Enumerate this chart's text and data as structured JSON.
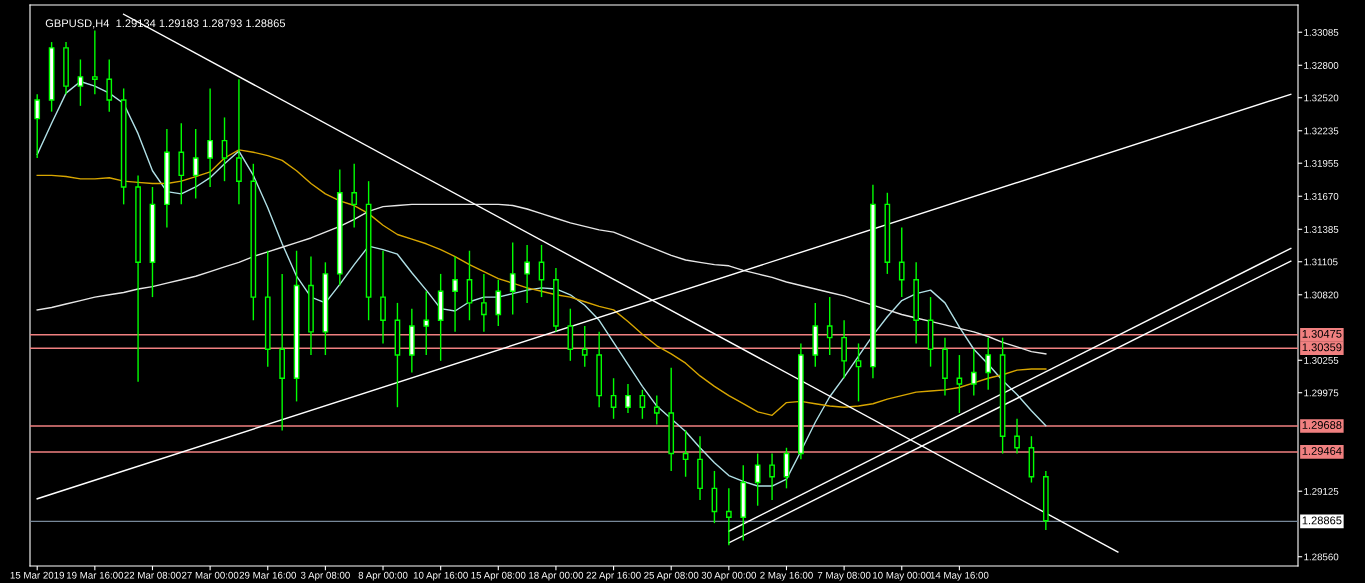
{
  "chart_data": {
    "type": "candlestick",
    "title": "GBPUSD,H4  1.29134 1.29183 1.28793 1.28865",
    "color": "#00ff00",
    "categories": [
      "15 Mar 2019",
      null,
      null,
      null,
      "19 Mar 16:00",
      null,
      null,
      null,
      "22 Mar 08:00",
      null,
      null,
      null,
      "27 Mar 00:00",
      null,
      null,
      null,
      "29 Mar 16:00",
      null,
      null,
      null,
      "3 Apr 08:00",
      null,
      null,
      null,
      "8 Apr 00:00",
      null,
      null,
      null,
      "10 Apr 16:00",
      null,
      null,
      null,
      "15 Apr 08:00",
      null,
      null,
      null,
      "18 Apr 00:00",
      null,
      null,
      null,
      "22 Apr 16:00",
      null,
      null,
      null,
      "25 Apr 08:00",
      null,
      null,
      null,
      "30 Apr 00:00",
      null,
      null,
      null,
      "2 May 16:00",
      null,
      null,
      null,
      "7 May 08:00",
      null,
      null,
      null,
      "10 May 00:00",
      null,
      null,
      null,
      "14 May 16:00",
      null,
      null,
      null,
      null,
      null,
      null,
      null,
      null,
      null,
      null,
      null,
      null,
      null,
      null,
      null,
      null,
      null,
      null,
      null,
      null,
      null,
      null,
      null
    ],
    "ohlc": [
      [
        1.3234,
        1.3255,
        1.32,
        1.325
      ],
      [
        1.325,
        1.33,
        1.324,
        1.3295
      ],
      [
        1.3295,
        1.33,
        1.3255,
        1.3262
      ],
      [
        1.3262,
        1.3285,
        1.3245,
        1.327
      ],
      [
        1.327,
        1.331,
        1.3255,
        1.3268
      ],
      [
        1.3268,
        1.3285,
        1.324,
        1.325
      ],
      [
        1.325,
        1.326,
        1.316,
        1.3175
      ],
      [
        1.3175,
        1.3185,
        1.3007,
        1.311
      ],
      [
        1.311,
        1.3175,
        1.308,
        1.316
      ],
      [
        1.316,
        1.3225,
        1.314,
        1.3205
      ],
      [
        1.3205,
        1.323,
        1.316,
        1.3185
      ],
      [
        1.3185,
        1.3225,
        1.3165,
        1.32
      ],
      [
        1.32,
        1.326,
        1.3175,
        1.3215
      ],
      [
        1.3215,
        1.3235,
        1.318,
        1.32
      ],
      [
        1.32,
        1.3268,
        1.316,
        1.318
      ],
      [
        1.318,
        1.3195,
        1.306,
        1.308
      ],
      [
        1.308,
        1.312,
        1.302,
        1.3035
      ],
      [
        1.3035,
        1.31,
        1.2965,
        1.301
      ],
      [
        1.301,
        1.312,
        1.299,
        1.309
      ],
      [
        1.309,
        1.3115,
        1.303,
        1.305
      ],
      [
        1.305,
        1.311,
        1.303,
        1.31
      ],
      [
        1.31,
        1.319,
        1.309,
        1.317
      ],
      [
        1.317,
        1.3195,
        1.314,
        1.316
      ],
      [
        1.316,
        1.318,
        1.306,
        1.308
      ],
      [
        1.308,
        1.312,
        1.304,
        1.306
      ],
      [
        1.306,
        1.3075,
        1.2985,
        1.303
      ],
      [
        1.303,
        1.307,
        1.3015,
        1.3055
      ],
      [
        1.3055,
        1.3085,
        1.303,
        1.306
      ],
      [
        1.306,
        1.31,
        1.3025,
        1.3085
      ],
      [
        1.3085,
        1.3115,
        1.305,
        1.3095
      ],
      [
        1.3095,
        1.312,
        1.306,
        1.3075
      ],
      [
        1.3075,
        1.31,
        1.305,
        1.3065
      ],
      [
        1.3065,
        1.3095,
        1.3055,
        1.3085
      ],
      [
        1.3085,
        1.3127,
        1.3065,
        1.31
      ],
      [
        1.31,
        1.3125,
        1.3075,
        1.311
      ],
      [
        1.311,
        1.3125,
        1.308,
        1.3095
      ],
      [
        1.3095,
        1.3105,
        1.305,
        1.3055
      ],
      [
        1.3055,
        1.307,
        1.3025,
        1.3035
      ],
      [
        1.3035,
        1.3055,
        1.302,
        1.303
      ],
      [
        1.303,
        1.305,
        1.2985,
        1.2995
      ],
      [
        1.2995,
        1.301,
        1.2975,
        1.2985
      ],
      [
        1.2985,
        1.3005,
        1.298,
        1.2995
      ],
      [
        1.2995,
        1.3,
        1.2975,
        1.2985
      ],
      [
        1.2985,
        1.2995,
        1.297,
        1.298
      ],
      [
        1.298,
        1.3019,
        1.293,
        1.2945
      ],
      [
        1.2945,
        1.2965,
        1.2925,
        1.294
      ],
      [
        1.294,
        1.296,
        1.2905,
        1.2915
      ],
      [
        1.2915,
        1.293,
        1.2885,
        1.2895
      ],
      [
        1.2895,
        1.2915,
        1.2866,
        1.289
      ],
      [
        1.289,
        1.2935,
        1.287,
        1.292
      ],
      [
        1.292,
        1.2945,
        1.29,
        1.2935
      ],
      [
        1.2935,
        1.2945,
        1.2905,
        1.2925
      ],
      [
        1.2925,
        1.295,
        1.2915,
        1.2945
      ],
      [
        1.2945,
        1.304,
        1.294,
        1.303
      ],
      [
        1.303,
        1.3075,
        1.302,
        1.3055
      ],
      [
        1.3055,
        1.308,
        1.303,
        1.3045
      ],
      [
        1.3045,
        1.306,
        1.301,
        1.3025
      ],
      [
        1.3025,
        1.304,
        1.299,
        1.302
      ],
      [
        1.302,
        1.3177,
        1.301,
        1.316
      ],
      [
        1.316,
        1.317,
        1.31,
        1.311
      ],
      [
        1.311,
        1.314,
        1.308,
        1.3095
      ],
      [
        1.3095,
        1.311,
        1.304,
        1.306
      ],
      [
        1.306,
        1.308,
        1.302,
        1.3035
      ],
      [
        1.3035,
        1.3045,
        1.2995,
        1.301
      ],
      [
        1.301,
        1.303,
        1.298,
        1.3005
      ],
      [
        1.3005,
        1.3035,
        1.2995,
        1.3015
      ],
      [
        1.3015,
        1.3045,
        1.3,
        1.303
      ],
      [
        1.303,
        1.3045,
        1.2945,
        1.296
      ],
      [
        1.296,
        1.2975,
        1.2945,
        1.295
      ],
      [
        1.295,
        1.296,
        1.292,
        1.2925
      ],
      [
        1.2925,
        1.293,
        1.2879,
        1.2887
      ],
      null,
      null,
      null,
      null,
      null,
      null,
      null,
      null,
      null,
      null,
      null,
      null,
      null,
      null,
      null,
      null,
      null
    ],
    "series": [
      {
        "type": "line",
        "color": "#b0e0e6",
        "values": [
          1.3203,
          1.323,
          1.3256,
          1.3266,
          1.3262,
          1.3256,
          1.3247,
          1.3221,
          1.3189,
          1.3171,
          1.3169,
          1.3175,
          1.3183,
          1.3195,
          1.3206,
          1.3185,
          1.3157,
          1.3126,
          1.3098,
          1.308,
          1.3075,
          1.3091,
          1.3108,
          1.3124,
          1.3121,
          1.3117,
          1.3101,
          1.3086,
          1.307,
          1.3068,
          1.3076,
          1.308,
          1.308,
          1.3083,
          1.3086,
          1.3088,
          1.3087,
          1.3082,
          1.3073,
          1.306,
          1.3041,
          1.3022,
          1.3003,
          1.2986,
          1.2975,
          1.2964,
          1.295,
          1.2937,
          1.2926,
          1.2921,
          1.2917,
          1.2917,
          1.2923,
          1.2947,
          1.2972,
          1.2994,
          1.3011,
          1.3029,
          1.3047,
          1.3063,
          1.3077,
          1.3083,
          1.3086,
          1.3075,
          1.3054,
          1.3035,
          1.3022,
          1.3008,
          1.2996,
          1.2982,
          1.2969,
          null,
          null,
          null,
          null,
          null,
          null,
          null,
          null,
          null,
          null,
          null,
          null,
          null,
          null,
          null,
          null,
          null
        ]
      },
      {
        "type": "line",
        "color": "#d8a600",
        "values": [
          1.3185,
          1.3185,
          1.3184,
          1.3182,
          1.3182,
          1.3183,
          1.318,
          1.3179,
          1.3178,
          1.3178,
          1.318,
          1.3184,
          1.3188,
          1.32,
          1.3207,
          1.3205,
          1.3202,
          1.3198,
          1.3189,
          1.3178,
          1.3169,
          1.3163,
          1.3159,
          1.3152,
          1.3142,
          1.3134,
          1.313,
          1.3126,
          1.3121,
          1.3115,
          1.3108,
          1.3102,
          1.3096,
          1.3092,
          1.3088,
          1.3085,
          1.3082,
          1.308,
          1.3076,
          1.3072,
          1.3069,
          1.3059,
          1.3048,
          1.3038,
          1.3031,
          1.3023,
          1.3012,
          1.3003,
          1.2995,
          1.2988,
          1.2981,
          1.2978,
          1.2989,
          1.299,
          1.2988,
          1.2986,
          1.2985,
          1.2986,
          1.2988,
          1.2992,
          1.2995,
          1.2998,
          1.2999,
          1.3,
          1.3002,
          1.3006,
          1.301,
          1.3013,
          1.3017,
          1.3018,
          1.3018,
          null,
          null,
          null,
          null,
          null,
          null,
          null,
          null,
          null,
          null,
          null,
          null,
          null,
          null,
          null,
          null,
          null
        ]
      },
      {
        "type": "line",
        "color": "#e6e6e6",
        "values": [
          1.3069,
          1.3071,
          1.3074,
          1.3077,
          1.308,
          1.3082,
          1.3084,
          1.3087,
          1.3089,
          1.3092,
          1.3095,
          1.3098,
          1.3102,
          1.3106,
          1.311,
          1.3115,
          1.3119,
          1.3123,
          1.3127,
          1.3131,
          1.3136,
          1.3141,
          1.3147,
          1.3154,
          1.3158,
          1.3159,
          1.316,
          1.316,
          1.316,
          1.316,
          1.316,
          1.316,
          1.316,
          1.3159,
          1.3156,
          1.3152,
          1.3148,
          1.3144,
          1.3141,
          1.3138,
          1.3136,
          1.3131,
          1.3126,
          1.3121,
          1.3116,
          1.3112,
          1.311,
          1.3108,
          1.3107,
          1.3103,
          1.31,
          1.3097,
          1.3093,
          1.309,
          1.3087,
          1.3084,
          1.3081,
          1.3077,
          1.3073,
          1.3069,
          1.3065,
          1.3062,
          1.3059,
          1.3056,
          1.3053,
          1.305,
          1.3046,
          1.3041,
          1.3037,
          1.3033,
          1.3031,
          null,
          null,
          null,
          null,
          null,
          null,
          null,
          null,
          null,
          null,
          null,
          null,
          null,
          null,
          null,
          null,
          null
        ]
      },
      {
        "type": "line",
        "color": "#ffffff",
        "values": [
          null,
          null,
          null,
          null,
          null,
          null,
          1.3324,
          null,
          null,
          null,
          null,
          null,
          null,
          null,
          null,
          null,
          null,
          null,
          null,
          null,
          null,
          null,
          null,
          null,
          null,
          null,
          null,
          null,
          null,
          null,
          null,
          null,
          null,
          null,
          null,
          null,
          null,
          null,
          null,
          null,
          null,
          null,
          null,
          null,
          null,
          null,
          null,
          null,
          null,
          null,
          null,
          null,
          null,
          null,
          null,
          null,
          null,
          null,
          null,
          null,
          null,
          null,
          null,
          null,
          null,
          null,
          null,
          null,
          null,
          null,
          null,
          null,
          null,
          null,
          null,
          1.286,
          null,
          null,
          null,
          null,
          null,
          null,
          null,
          null,
          null,
          null,
          null,
          null
        ]
      },
      {
        "type": "line",
        "color": "#ffffff",
        "values": [
          1.2906,
          null,
          null,
          null,
          null,
          null,
          null,
          null,
          null,
          null,
          null,
          null,
          null,
          null,
          null,
          null,
          null,
          null,
          null,
          null,
          null,
          null,
          null,
          null,
          null,
          null,
          null,
          null,
          null,
          null,
          null,
          null,
          null,
          null,
          null,
          null,
          null,
          null,
          null,
          null,
          null,
          null,
          null,
          null,
          null,
          null,
          null,
          null,
          null,
          null,
          null,
          null,
          null,
          null,
          null,
          null,
          null,
          null,
          null,
          null,
          null,
          null,
          null,
          null,
          null,
          null,
          null,
          null,
          null,
          null,
          null,
          null,
          null,
          null,
          null,
          null,
          null,
          null,
          null,
          null,
          null,
          null,
          null,
          null,
          null,
          null,
          null,
          1.3255
        ]
      },
      {
        "type": "line",
        "color": "#ffffff",
        "values": [
          null,
          null,
          null,
          null,
          null,
          null,
          null,
          null,
          null,
          null,
          null,
          null,
          null,
          null,
          null,
          null,
          null,
          null,
          null,
          null,
          null,
          null,
          null,
          null,
          null,
          null,
          null,
          null,
          null,
          null,
          null,
          null,
          null,
          null,
          null,
          null,
          null,
          null,
          null,
          null,
          null,
          null,
          null,
          null,
          null,
          null,
          null,
          null,
          1.2878,
          null,
          null,
          null,
          null,
          null,
          null,
          null,
          null,
          null,
          null,
          null,
          null,
          null,
          null,
          null,
          null,
          null,
          null,
          null,
          null,
          null,
          null,
          null,
          null,
          null,
          null,
          null,
          null,
          null,
          null,
          null,
          null,
          null,
          null,
          null,
          null,
          null,
          null,
          1.3122
        ]
      },
      {
        "type": "line",
        "color": "#ffffff",
        "values": [
          null,
          null,
          null,
          null,
          null,
          null,
          null,
          null,
          null,
          null,
          null,
          null,
          null,
          null,
          null,
          null,
          null,
          null,
          null,
          null,
          null,
          null,
          null,
          null,
          null,
          null,
          null,
          null,
          null,
          null,
          null,
          null,
          null,
          null,
          null,
          null,
          null,
          null,
          null,
          null,
          null,
          null,
          null,
          null,
          null,
          null,
          null,
          null,
          1.2868,
          null,
          null,
          null,
          null,
          null,
          null,
          null,
          null,
          null,
          null,
          null,
          null,
          null,
          null,
          null,
          null,
          null,
          null,
          null,
          null,
          null,
          null,
          null,
          null,
          null,
          null,
          null,
          null,
          null,
          null,
          null,
          null,
          null,
          null,
          null,
          null,
          null,
          null,
          1.3111
        ]
      }
    ],
    "ylim": [
      1.2848,
      1.3332
    ],
    "yticks": [
      {
        "value": 1.33085,
        "label": "1.33085"
      },
      {
        "value": 1.328,
        "label": "1.32800"
      },
      {
        "value": 1.3252,
        "label": "1.32520"
      },
      {
        "value": 1.32235,
        "label": "1.32235"
      },
      {
        "value": 1.31955,
        "label": "1.31955"
      },
      {
        "value": 1.3167,
        "label": "1.31670"
      },
      {
        "value": 1.31385,
        "label": "1.31385"
      },
      {
        "value": 1.31105,
        "label": "1.31105"
      },
      {
        "value": 1.3082,
        "label": "1.30820"
      },
      {
        "value": 1.30255,
        "label": "1.30255"
      },
      {
        "value": 1.29975,
        "label": "1.29975"
      },
      {
        "value": 1.29125,
        "label": "1.29125"
      },
      {
        "value": 1.2856,
        "label": "1.28560"
      }
    ],
    "ref_lines": [
      {
        "axis": "y",
        "value": 1.30475,
        "label": "1.30475",
        "color": "#f08080"
      },
      {
        "axis": "y",
        "value": 1.30359,
        "label": "1.30359",
        "color": "#f08080"
      },
      {
        "axis": "y",
        "value": 1.29688,
        "label": "1.29688",
        "color": "#f08080"
      },
      {
        "axis": "y",
        "value": 1.29464,
        "label": "1.29464",
        "color": "#f08080"
      },
      {
        "axis": "y",
        "value": 1.28865,
        "label": "1.28865",
        "color": "#778899"
      }
    ],
    "grid": false,
    "legend": false
  }
}
